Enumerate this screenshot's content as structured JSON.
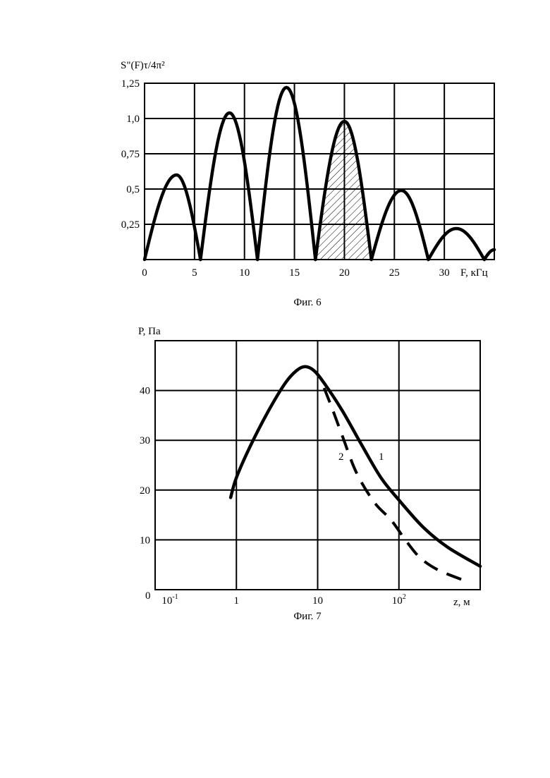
{
  "figures": [
    {
      "caption": "Фиг. 6",
      "ylabel": "S\"(F)τ/4π²",
      "xlabel": "F, кГц",
      "chart_data": {
        "type": "line",
        "xlim": [
          0,
          35
        ],
        "ylim": [
          0,
          1.25
        ],
        "x_ticks": [
          0,
          5,
          10,
          15,
          20,
          25,
          30
        ],
        "x_tick_labels": [
          "0",
          "5",
          "10",
          "15",
          "20",
          "25",
          "30"
        ],
        "y_ticks": [
          0.25,
          0.5,
          0.75,
          1.0,
          1.25
        ],
        "y_tick_labels": [
          "0,25",
          "0,5",
          "0,75",
          "1,0",
          "1,25"
        ],
        "grid": true,
        "lobes": [
          {
            "start": 0,
            "peak_x": 3.2,
            "peak_y": 0.6,
            "end": 5.6
          },
          {
            "start": 5.6,
            "peak_x": 8.5,
            "peak_y": 1.04,
            "end": 11.3
          },
          {
            "start": 11.3,
            "peak_x": 14.2,
            "peak_y": 1.22,
            "end": 17.1
          },
          {
            "start": 17.1,
            "peak_x": 20.0,
            "peak_y": 0.98,
            "end": 22.7
          },
          {
            "start": 22.7,
            "peak_x": 25.7,
            "peak_y": 0.49,
            "end": 28.4
          },
          {
            "start": 28.4,
            "peak_x": 31.2,
            "peak_y": 0.22,
            "end": 34.0
          },
          {
            "start": 34.0,
            "peak_x": 35.0,
            "peak_y": 0.07,
            "end": 35.0
          }
        ],
        "hatched_lobe_index": 3
      }
    },
    {
      "caption": "Фиг. 7",
      "ylabel": "P, Па",
      "xlabel": "z, м",
      "origin_label": "0",
      "chart_data": {
        "type": "line",
        "x_scale": "log",
        "xlim": [
          0.1,
          1000
        ],
        "ylim": [
          0,
          50
        ],
        "x_tick_labels": [
          {
            "value": 0.1,
            "base": "10",
            "exp": "-1"
          },
          {
            "value": 1,
            "base": "1",
            "exp": ""
          },
          {
            "value": 10,
            "base": "10",
            "exp": ""
          },
          {
            "value": 100,
            "base": "10",
            "exp": "2"
          }
        ],
        "y_ticks": [
          10,
          20,
          30,
          40
        ],
        "y_tick_labels": [
          "10",
          "20",
          "30",
          "40"
        ],
        "grid": true,
        "series": [
          {
            "label": "1",
            "style": "solid",
            "points": [
              [
                0.85,
                18.5
              ],
              [
                1.0,
                22.5
              ],
              [
                1.5,
                29
              ],
              [
                2.5,
                36
              ],
              [
                4,
                41.5
              ],
              [
                5.5,
                44
              ],
              [
                7,
                44.8
              ],
              [
                9,
                44
              ],
              [
                12,
                41.5
              ],
              [
                20,
                36
              ],
              [
                35,
                29
              ],
              [
                60,
                22.5
              ],
              [
                100,
                18
              ],
              [
                200,
                12.5
              ],
              [
                400,
                8.5
              ],
              [
                1000,
                4.7
              ]
            ]
          },
          {
            "label": "2",
            "style": "dashed",
            "points": [
              [
                12,
                40.5
              ],
              [
                15,
                36.5
              ],
              [
                20,
                31
              ],
              [
                30,
                23.5
              ],
              [
                50,
                17.5
              ],
              [
                80,
                14
              ],
              [
                120,
                10
              ],
              [
                180,
                6.5
              ],
              [
                300,
                4
              ],
              [
                600,
                2
              ]
            ]
          }
        ],
        "series_labels_text": [
          "2",
          "1"
        ]
      }
    }
  ]
}
